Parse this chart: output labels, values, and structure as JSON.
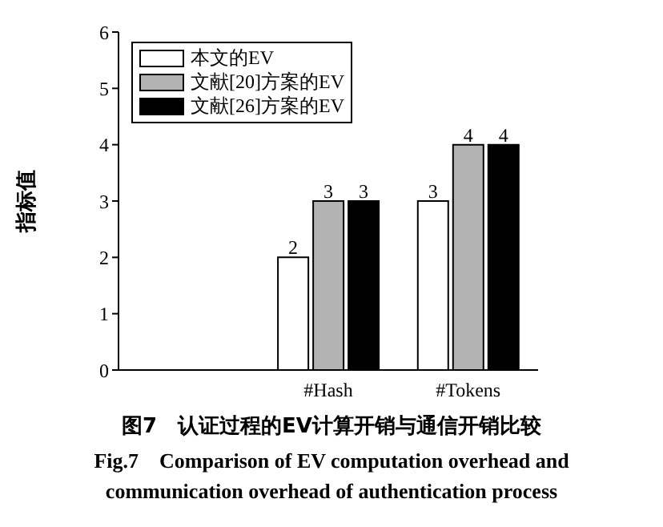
{
  "chart_data": {
    "type": "bar",
    "title": "图7　认证过程的EV计算开销与通信开销比较",
    "subtitle": "Fig.7　Comparison of EV computation overhead and communication overhead of authentication process",
    "ylabel": "指标值",
    "categories": [
      null,
      "#Hash",
      "#Tokens"
    ],
    "series": [
      {
        "name": "本文的EV",
        "color": "#ffffff",
        "values": [
          null,
          2,
          3
        ]
      },
      {
        "name": "文献[20]方案的EV",
        "color": "#b3b3b3",
        "values": [
          null,
          3,
          4
        ]
      },
      {
        "name": "文献[26]方案的EV",
        "color": "#000000",
        "values": [
          null,
          3,
          4
        ]
      }
    ],
    "ylim": [
      0,
      6
    ],
    "yticks": [
      0,
      1,
      2,
      3,
      4,
      5,
      6
    ],
    "data_labels": true,
    "legend": "top left",
    "grid": false
  }
}
